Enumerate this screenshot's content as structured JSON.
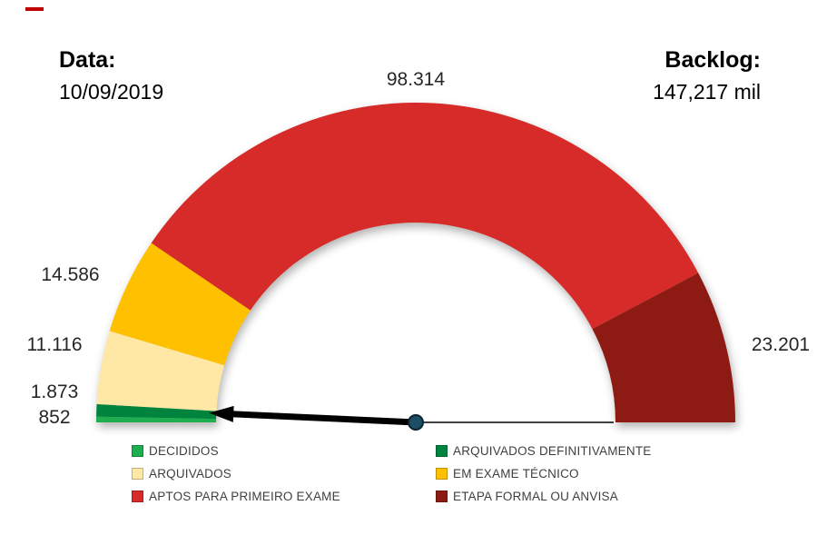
{
  "header": {
    "date_label": "Data:",
    "date_value": "10/09/2019",
    "backlog_label": "Backlog:",
    "backlog_value": "147,217 mil"
  },
  "chart_data": {
    "type": "pie",
    "subtype": "gauge-half-donut",
    "title": "",
    "legend_position": "bottom",
    "start_angle_deg": 180,
    "end_angle_deg": 0,
    "needle": {
      "angle_deg": 177.4,
      "points_to": "DECIDIDOS"
    },
    "segments": [
      {
        "name": "DECIDIDOS",
        "value": 852,
        "display": "852",
        "color": "#1FAE4F"
      },
      {
        "name": "ARQUIVADOS DEFINITIVAMENTE",
        "value": 1873,
        "display": "1.873",
        "color": "#00843D"
      },
      {
        "name": "ARQUIVADOS",
        "value": 11116,
        "display": "11.116",
        "color": "#FFE8A6"
      },
      {
        "name": "EM EXAME TÉCNICO",
        "value": 14586,
        "display": "14.586",
        "color": "#FFC000"
      },
      {
        "name": "APTOS PARA PRIMEIRO EXAME",
        "value": 98314,
        "display": "98.314",
        "color": "#D62B28"
      },
      {
        "name": "ETAPA FORMAL OU ANVISA",
        "value": 23201,
        "display": "23.201",
        "color": "#8E1B13"
      }
    ]
  }
}
